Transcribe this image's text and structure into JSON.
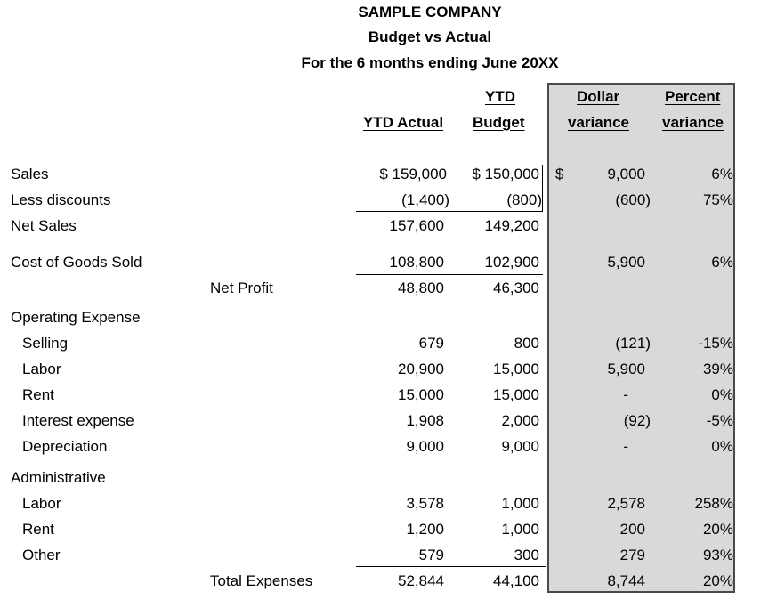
{
  "title": {
    "company": "SAMPLE COMPANY",
    "report": "Budget vs Actual",
    "period": "For the 6 months ending June 20XX"
  },
  "headers": {
    "ytd_actual": "YTD Actual",
    "ytd_budget_line1": "YTD",
    "ytd_budget_line2": "Budget",
    "dollar_line1": "Dollar",
    "dollar_line2": "variance",
    "percent_line1": "Percent",
    "percent_line2": "variance"
  },
  "rows": {
    "sales": {
      "label": "Sales",
      "actual": "$ 159,000",
      "budget": "$ 150,000",
      "dollar_sign": "$",
      "dollar": "9,000",
      "percent": "6%"
    },
    "discounts": {
      "label": "Less discounts",
      "actual": "(1,400)",
      "budget": "(800)",
      "dollar": "(600)",
      "percent": "75%"
    },
    "net_sales": {
      "label": "Net Sales",
      "actual": "157,600",
      "budget": "149,200"
    },
    "cogs": {
      "label": "Cost of Goods Sold",
      "actual": "108,800",
      "budget": "102,900",
      "dollar": "5,900",
      "percent": "6%"
    },
    "net_profit": {
      "label": "Net Profit",
      "actual": "48,800",
      "budget": "46,300"
    },
    "opex": {
      "label": "Operating Expense"
    },
    "selling": {
      "label": "Selling",
      "actual": "679",
      "budget": "800",
      "dollar": "(121)",
      "percent": "-15%"
    },
    "labor": {
      "label": "Labor",
      "actual": "20,900",
      "budget": "15,000",
      "dollar": "5,900",
      "percent": "39%"
    },
    "rent": {
      "label": "Rent",
      "actual": "15,000",
      "budget": "15,000",
      "dollar": "-",
      "percent": "0%"
    },
    "interest": {
      "label": "Interest expense",
      "actual": "1,908",
      "budget": "2,000",
      "dollar": "(92)",
      "percent": "-5%"
    },
    "depreciation": {
      "label": "Depreciation",
      "actual": "9,000",
      "budget": "9,000",
      "dollar": "-",
      "percent": "0%"
    },
    "admin": {
      "label": "Administrative"
    },
    "admin_labor": {
      "label": "Labor",
      "actual": "3,578",
      "budget": "1,000",
      "dollar": "2,578",
      "percent": "258%"
    },
    "admin_rent": {
      "label": "Rent",
      "actual": "1,200",
      "budget": "1,000",
      "dollar": "200",
      "percent": "20%"
    },
    "admin_other": {
      "label": "Other",
      "actual": "579",
      "budget": "300",
      "dollar": "279",
      "percent": "93%"
    },
    "total_expenses": {
      "label": "Total Expenses",
      "actual": "52,844",
      "budget": "44,100",
      "dollar": "8,744",
      "percent": "20%"
    }
  }
}
